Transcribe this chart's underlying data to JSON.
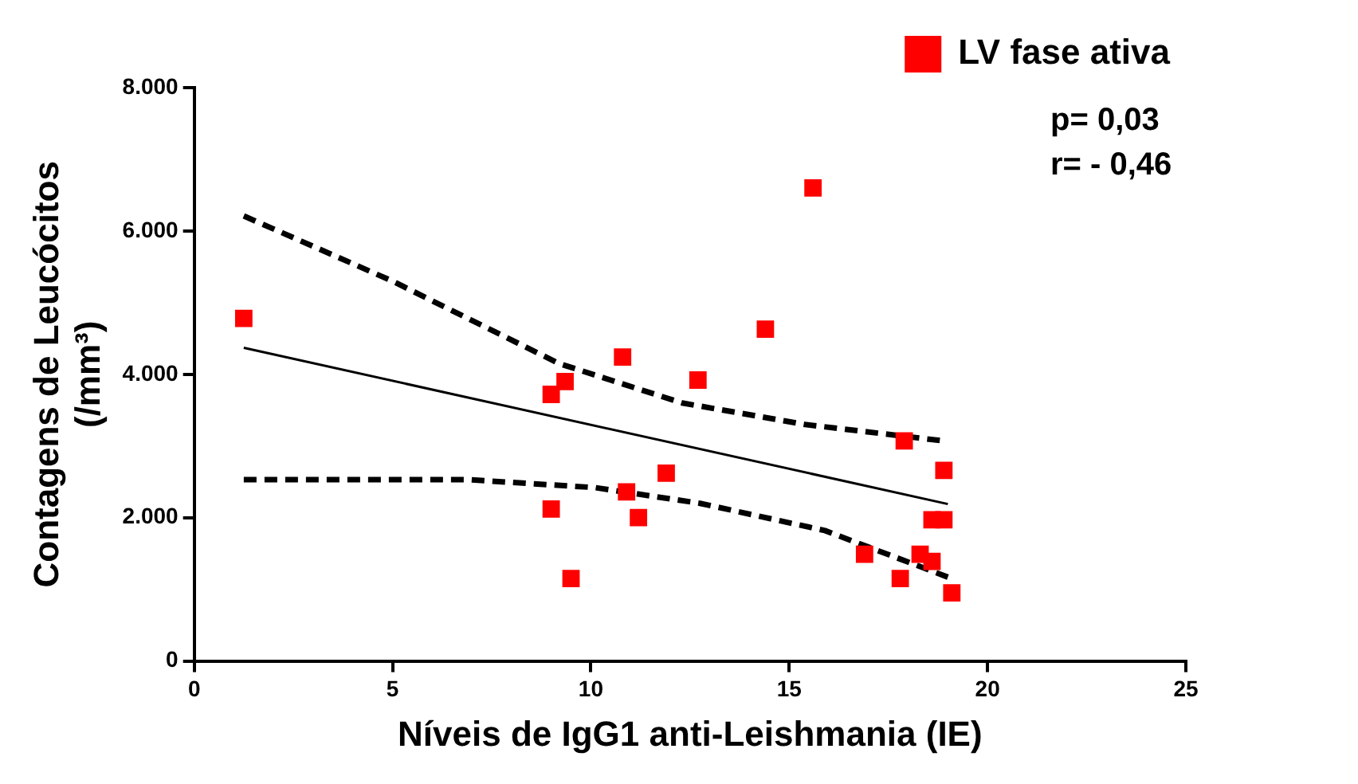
{
  "chart_data": {
    "type": "scatter",
    "xlabel": "Níveis de IgG1 anti-Leishmania (IE)",
    "ylabel": "Contagens de Leucócitos\n(/mm³)",
    "xlim": [
      0,
      25
    ],
    "xticks": [
      0,
      5,
      10,
      15,
      20,
      25
    ],
    "ylim": [
      0,
      8000
    ],
    "yticks": [
      0,
      {
        "value": 2000,
        "label": "2.000"
      },
      {
        "value": 4000,
        "label": "4.000"
      },
      {
        "value": 6000,
        "label": "6.000"
      },
      {
        "value": 8000,
        "label": "8.000"
      }
    ],
    "grid": false,
    "legend": "top right",
    "marker": "square",
    "annotations": [
      "p= 0,03",
      "r= - 0,46"
    ],
    "series": [
      {
        "name": "LV fase ativa",
        "type": "scatter",
        "color": "#ff0000",
        "x": [
          1.25,
          9.0,
          9.35,
          9.0,
          9.5,
          10.8,
          10.9,
          11.2,
          11.9,
          12.7,
          14.4,
          15.6,
          16.9,
          17.9,
          17.8,
          18.3,
          18.6,
          18.6,
          18.9,
          18.9,
          19.1
        ],
        "values": [
          4780,
          3720,
          3900,
          2120,
          1150,
          4240,
          2360,
          2000,
          2620,
          3920,
          4630,
          6600,
          1490,
          3070,
          1150,
          1490,
          1970,
          1390,
          2660,
          1970,
          950
        ]
      },
      {
        "type": "line",
        "color": "#000000",
        "line_style": "solid",
        "marker": "none",
        "x": [
          1.25,
          19.0
        ],
        "values": [
          4370,
          2190
        ]
      },
      {
        "type": "line",
        "color": "#000000",
        "line_style": "dashed",
        "marker": "none",
        "x": [
          1.25,
          5,
          9.2,
          12.3,
          15.4,
          18.9
        ],
        "values": [
          6210,
          5300,
          4150,
          3600,
          3300,
          3070
        ]
      },
      {
        "type": "line",
        "color": "#000000",
        "line_style": "dashed",
        "marker": "none",
        "x": [
          1.25,
          6.9,
          10.1,
          12.75,
          15.9,
          19.0
        ],
        "values": [
          2530,
          2530,
          2420,
          2200,
          1820,
          1170
        ]
      }
    ]
  }
}
